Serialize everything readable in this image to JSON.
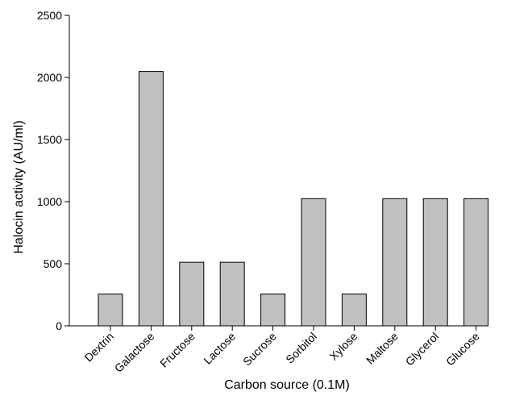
{
  "chart_data": {
    "type": "bar",
    "title": "",
    "xlabel": "Carbon source (0.1M)",
    "ylabel": "Halocin activity (AU/ml)",
    "ylim": [
      0,
      2500
    ],
    "yticks": [
      0,
      500,
      1000,
      1500,
      2000,
      2500
    ],
    "categories": [
      "Dextrin",
      "Galactose",
      "Fructose",
      "Lactose",
      "Sucrose",
      "Sorbitol",
      "Xylose",
      "Maltose",
      "Glycerol",
      "Glucose"
    ],
    "values": [
      256,
      2048,
      512,
      512,
      256,
      1024,
      256,
      1024,
      1024,
      1024
    ],
    "bar_color": "#c0c0c0",
    "bar_edge_color": "#000000",
    "grid": false,
    "legend": "none"
  }
}
